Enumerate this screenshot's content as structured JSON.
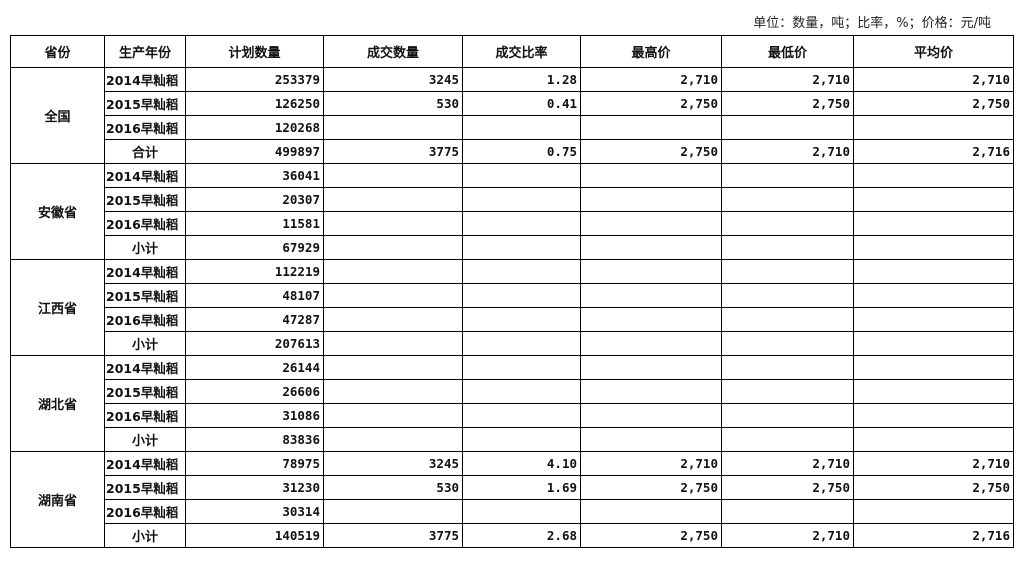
{
  "unit_note": "单位：数量，吨；比率，%；价格：元/吨",
  "headers": [
    "省份",
    "生产年份",
    "计划数量",
    "成交数量",
    "成交比率",
    "最高价",
    "最低价",
    "平均价"
  ],
  "groups": [
    {
      "province": "全国",
      "rows": [
        {
          "year": "2014早籼稻",
          "plan": "253379",
          "deal": "3245",
          "ratio": "1.28",
          "high": "2,710",
          "low": "2,710",
          "avg": "2,710"
        },
        {
          "year": "2015早籼稻",
          "plan": "126250",
          "deal": "530",
          "ratio": "0.41",
          "high": "2,750",
          "low": "2,750",
          "avg": "2,750"
        },
        {
          "year": "2016早籼稻",
          "plan": "120268",
          "deal": "",
          "ratio": "",
          "high": "",
          "low": "",
          "avg": ""
        },
        {
          "year": "合计",
          "plan": "499897",
          "deal": "3775",
          "ratio": "0.75",
          "high": "2,750",
          "low": "2,710",
          "avg": "2,716"
        }
      ]
    },
    {
      "province": "安徽省",
      "rows": [
        {
          "year": "2014早籼稻",
          "plan": "36041",
          "deal": "",
          "ratio": "",
          "high": "",
          "low": "",
          "avg": ""
        },
        {
          "year": "2015早籼稻",
          "plan": "20307",
          "deal": "",
          "ratio": "",
          "high": "",
          "low": "",
          "avg": ""
        },
        {
          "year": "2016早籼稻",
          "plan": "11581",
          "deal": "",
          "ratio": "",
          "high": "",
          "low": "",
          "avg": ""
        },
        {
          "year": "小计",
          "plan": "67929",
          "deal": "",
          "ratio": "",
          "high": "",
          "low": "",
          "avg": ""
        }
      ]
    },
    {
      "province": "江西省",
      "rows": [
        {
          "year": "2014早籼稻",
          "plan": "112219",
          "deal": "",
          "ratio": "",
          "high": "",
          "low": "",
          "avg": ""
        },
        {
          "year": "2015早籼稻",
          "plan": "48107",
          "deal": "",
          "ratio": "",
          "high": "",
          "low": "",
          "avg": ""
        },
        {
          "year": "2016早籼稻",
          "plan": "47287",
          "deal": "",
          "ratio": "",
          "high": "",
          "low": "",
          "avg": ""
        },
        {
          "year": "小计",
          "plan": "207613",
          "deal": "",
          "ratio": "",
          "high": "",
          "low": "",
          "avg": ""
        }
      ]
    },
    {
      "province": "湖北省",
      "rows": [
        {
          "year": "2014早籼稻",
          "plan": "26144",
          "deal": "",
          "ratio": "",
          "high": "",
          "low": "",
          "avg": ""
        },
        {
          "year": "2015早籼稻",
          "plan": "26606",
          "deal": "",
          "ratio": "",
          "high": "",
          "low": "",
          "avg": ""
        },
        {
          "year": "2016早籼稻",
          "plan": "31086",
          "deal": "",
          "ratio": "",
          "high": "",
          "low": "",
          "avg": ""
        },
        {
          "year": "小计",
          "plan": "83836",
          "deal": "",
          "ratio": "",
          "high": "",
          "low": "",
          "avg": ""
        }
      ]
    },
    {
      "province": "湖南省",
      "rows": [
        {
          "year": "2014早籼稻",
          "plan": "78975",
          "deal": "3245",
          "ratio": "4.10",
          "high": "2,710",
          "low": "2,710",
          "avg": "2,710"
        },
        {
          "year": "2015早籼稻",
          "plan": "31230",
          "deal": "530",
          "ratio": "1.69",
          "high": "2,750",
          "low": "2,750",
          "avg": "2,750"
        },
        {
          "year": "2016早籼稻",
          "plan": "30314",
          "deal": "",
          "ratio": "",
          "high": "",
          "low": "",
          "avg": ""
        },
        {
          "year": "小计",
          "plan": "140519",
          "deal": "3775",
          "ratio": "2.68",
          "high": "2,750",
          "low": "2,710",
          "avg": "2,716"
        }
      ]
    }
  ]
}
